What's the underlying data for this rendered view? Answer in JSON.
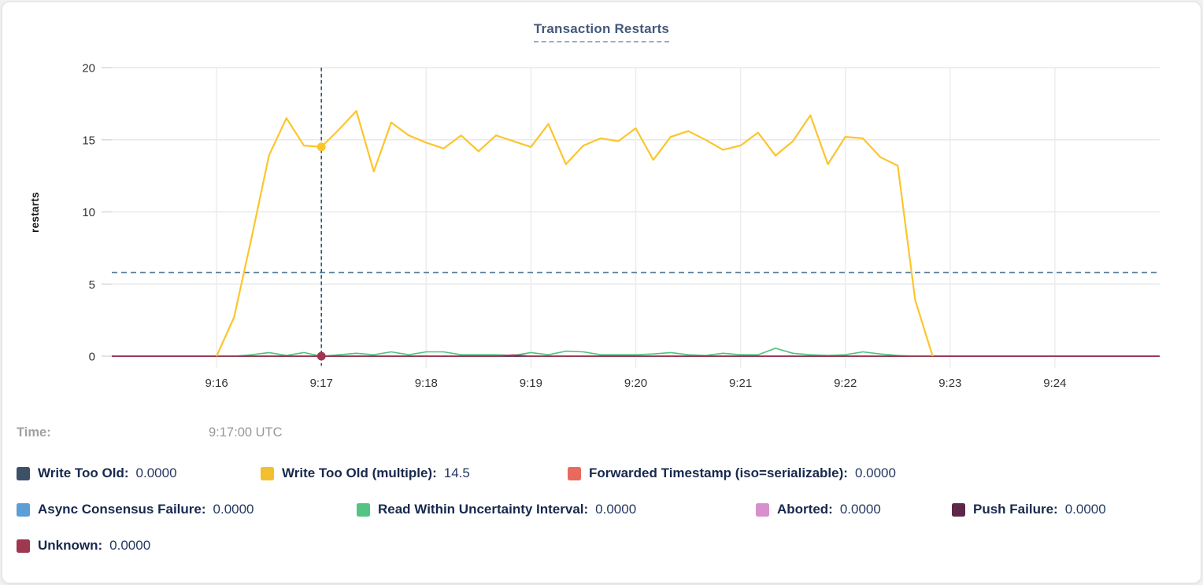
{
  "header": {
    "title": "Transaction Restarts"
  },
  "time_row": {
    "label": "Time:",
    "value": "9:17:00 UTC"
  },
  "legend": {
    "rows": [
      [
        {
          "label": "Write Too Old:",
          "value": "0.0000",
          "color": "#3e4f68"
        },
        {
          "label": "Write Too Old (multiple):",
          "value": "14.5",
          "color": "#f2c02e"
        },
        {
          "label": "Forwarded Timestamp (iso=serializable):",
          "value": "0.0000",
          "color": "#e9695e"
        }
      ],
      [
        {
          "label": "Async Consensus Failure:",
          "value": "0.0000",
          "color": "#5b9fd6"
        },
        {
          "label": "Read Within Uncertainty Interval:",
          "value": "0.0000",
          "color": "#55c383"
        },
        {
          "label": "Aborted:",
          "value": "0.0000",
          "color": "#d78fce"
        },
        {
          "label": "Push Failure:",
          "value": "0.0000",
          "color": "#5c2748"
        }
      ],
      [
        {
          "label": "Unknown:",
          "value": "0.0000",
          "color": "#9e3750"
        }
      ]
    ]
  },
  "chart_data": {
    "type": "line",
    "title": "Transaction Restarts",
    "xlabel": "",
    "ylabel": "restarts",
    "ylim": [
      0,
      20
    ],
    "yticks": [
      0,
      5,
      10,
      15,
      20
    ],
    "xticks": [
      "9:16",
      "9:17",
      "9:18",
      "9:19",
      "9:20",
      "9:21",
      "9:22",
      "9:23",
      "9:24"
    ],
    "x_domain": [
      "9:15:00",
      "9:25:00"
    ],
    "grid": true,
    "legend_position": "bottom",
    "reference_line": {
      "value": 5.8,
      "style": "dashed"
    },
    "crosshair": {
      "time": "9:17:00",
      "markers": [
        {
          "series": "Write Too Old (multiple)",
          "value": 14.5
        },
        {
          "series": "Unknown",
          "value": 0
        }
      ]
    },
    "series": [
      {
        "name": "Write Too Old",
        "color": "#3e4f68",
        "width": 1.6,
        "samples": [
          [
            "9:15:00",
            0
          ],
          [
            "9:25:00",
            0
          ]
        ]
      },
      {
        "name": "Forwarded Timestamp (iso=serializable)",
        "color": "#e9695e",
        "width": 1.6,
        "samples": [
          [
            "9:15:00",
            0
          ],
          [
            "9:25:00",
            0
          ]
        ]
      },
      {
        "name": "Async Consensus Failure",
        "color": "#5b9fd6",
        "width": 1.6,
        "samples": [
          [
            "9:15:00",
            0
          ],
          [
            "9:25:00",
            0
          ]
        ]
      },
      {
        "name": "Aborted",
        "color": "#d78fce",
        "width": 1.6,
        "samples": [
          [
            "9:15:00",
            0
          ],
          [
            "9:25:00",
            0
          ]
        ]
      },
      {
        "name": "Push Failure",
        "color": "#5c2748",
        "width": 1.6,
        "samples": [
          [
            "9:15:00",
            0
          ],
          [
            "9:25:00",
            0
          ]
        ]
      },
      {
        "name": "Read Within Uncertainty Interval",
        "color": "#4ec17c",
        "width": 1.6,
        "samples": [
          [
            "9:16:00",
            0
          ],
          [
            "9:16:10",
            0
          ],
          [
            "9:16:20",
            0.1
          ],
          [
            "9:16:30",
            0.25
          ],
          [
            "9:16:40",
            0.05
          ],
          [
            "9:16:50",
            0.25
          ],
          [
            "9:17:00",
            0
          ],
          [
            "9:17:10",
            0.1
          ],
          [
            "9:17:20",
            0.2
          ],
          [
            "9:17:30",
            0.1
          ],
          [
            "9:17:40",
            0.3
          ],
          [
            "9:17:50",
            0.1
          ],
          [
            "9:18:00",
            0.3
          ],
          [
            "9:18:10",
            0.3
          ],
          [
            "9:18:20",
            0.1
          ],
          [
            "9:18:30",
            0.1
          ],
          [
            "9:18:40",
            0.1
          ],
          [
            "9:18:50",
            0.05
          ],
          [
            "9:19:00",
            0.25
          ],
          [
            "9:19:10",
            0.1
          ],
          [
            "9:19:20",
            0.35
          ],
          [
            "9:19:30",
            0.3
          ],
          [
            "9:19:40",
            0.1
          ],
          [
            "9:19:50",
            0.1
          ],
          [
            "9:20:00",
            0.1
          ],
          [
            "9:20:10",
            0.15
          ],
          [
            "9:20:20",
            0.25
          ],
          [
            "9:20:30",
            0.1
          ],
          [
            "9:20:40",
            0.05
          ],
          [
            "9:20:50",
            0.2
          ],
          [
            "9:21:00",
            0.1
          ],
          [
            "9:21:10",
            0.1
          ],
          [
            "9:21:20",
            0.55
          ],
          [
            "9:21:30",
            0.2
          ],
          [
            "9:21:40",
            0.1
          ],
          [
            "9:21:50",
            0.05
          ],
          [
            "9:22:00",
            0.1
          ],
          [
            "9:22:10",
            0.3
          ],
          [
            "9:22:20",
            0.15
          ],
          [
            "9:22:30",
            0.05
          ],
          [
            "9:22:40",
            0
          ],
          [
            "9:22:50",
            0
          ]
        ]
      },
      {
        "name": "Unknown",
        "color": "#9e3750",
        "width": 1.8,
        "samples": [
          [
            "9:15:00",
            0
          ],
          [
            "9:18:40",
            0
          ],
          [
            "9:18:50",
            0.08
          ],
          [
            "9:19:00",
            0
          ],
          [
            "9:25:00",
            0
          ]
        ]
      },
      {
        "name": "Write Too Old (multiple)",
        "color": "#fcc52d",
        "width": 2.2,
        "samples": [
          [
            "9:16:00",
            0
          ],
          [
            "9:16:10",
            2.7
          ],
          [
            "9:16:20",
            8.2
          ],
          [
            "9:16:30",
            13.9
          ],
          [
            "9:16:40",
            16.5
          ],
          [
            "9:16:50",
            14.6
          ],
          [
            "9:17:00",
            14.5
          ],
          [
            "9:17:10",
            15.7
          ],
          [
            "9:17:20",
            17
          ],
          [
            "9:17:30",
            12.8
          ],
          [
            "9:17:40",
            16.2
          ],
          [
            "9:17:50",
            15.3
          ],
          [
            "9:18:00",
            14.8
          ],
          [
            "9:18:10",
            14.4
          ],
          [
            "9:18:20",
            15.3
          ],
          [
            "9:18:30",
            14.2
          ],
          [
            "9:18:40",
            15.3
          ],
          [
            "9:18:50",
            14.9
          ],
          [
            "9:19:00",
            14.5
          ],
          [
            "9:19:10",
            16.1
          ],
          [
            "9:19:20",
            13.3
          ],
          [
            "9:19:30",
            14.6
          ],
          [
            "9:19:40",
            15.1
          ],
          [
            "9:19:50",
            14.9
          ],
          [
            "9:20:00",
            15.8
          ],
          [
            "9:20:10",
            13.6
          ],
          [
            "9:20:20",
            15.2
          ],
          [
            "9:20:30",
            15.6
          ],
          [
            "9:20:40",
            15
          ],
          [
            "9:20:50",
            14.3
          ],
          [
            "9:21:00",
            14.6
          ],
          [
            "9:21:10",
            15.5
          ],
          [
            "9:21:20",
            13.9
          ],
          [
            "9:21:30",
            14.9
          ],
          [
            "9:21:40",
            16.7
          ],
          [
            "9:21:50",
            13.3
          ],
          [
            "9:22:00",
            15.2
          ],
          [
            "9:22:10",
            15.1
          ],
          [
            "9:22:20",
            13.8
          ],
          [
            "9:22:30",
            13.2
          ],
          [
            "9:22:40",
            3.9
          ],
          [
            "9:22:50",
            0
          ]
        ]
      }
    ]
  }
}
